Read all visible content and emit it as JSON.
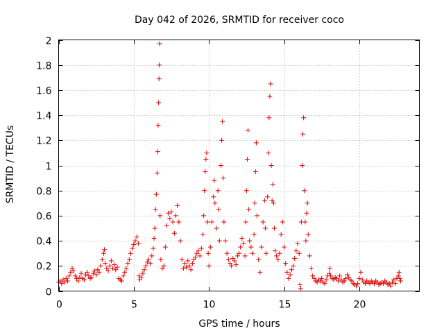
{
  "chart_data": {
    "type": "scatter",
    "title": "Day 042 of 2026, SRMTID for receiver coco",
    "xlabel": "GPS time / hours",
    "ylabel": "SRMTID / TECUs",
    "xlim": [
      0,
      24
    ],
    "ylim": [
      0,
      2
    ],
    "xticks": [
      0,
      5,
      10,
      15,
      20
    ],
    "yticks": [
      0,
      0.2,
      0.4,
      0.6,
      0.8,
      1,
      1.2,
      1.4,
      1.6,
      1.8,
      2
    ],
    "xtick_labels": [
      "0",
      "5",
      "10",
      "15",
      "20"
    ],
    "ytick_labels": [
      "0",
      "0.2",
      "0.4",
      "0.6",
      "0.8",
      "1",
      "1.2",
      "1.4",
      "1.6",
      "1.8",
      "2"
    ],
    "grid": true,
    "marker": "plus",
    "color": "#e00000",
    "series": [
      {
        "name": "SRMTID",
        "points": [
          [
            0.0,
            0.07
          ],
          [
            0.1,
            0.08
          ],
          [
            0.2,
            0.06
          ],
          [
            0.3,
            0.09
          ],
          [
            0.4,
            0.07
          ],
          [
            0.5,
            0.1
          ],
          [
            0.6,
            0.08
          ],
          [
            0.7,
            0.12
          ],
          [
            0.8,
            0.15
          ],
          [
            0.9,
            0.18
          ],
          [
            1.0,
            0.16
          ],
          [
            1.1,
            0.12
          ],
          [
            1.2,
            0.1
          ],
          [
            1.3,
            0.08
          ],
          [
            1.4,
            0.11
          ],
          [
            1.5,
            0.14
          ],
          [
            1.6,
            0.1
          ],
          [
            1.7,
            0.09
          ],
          [
            1.8,
            0.13
          ],
          [
            1.9,
            0.15
          ],
          [
            2.0,
            0.12
          ],
          [
            2.1,
            0.1
          ],
          [
            2.2,
            0.11
          ],
          [
            2.3,
            0.14
          ],
          [
            2.4,
            0.16
          ],
          [
            2.5,
            0.13
          ],
          [
            2.6,
            0.17
          ],
          [
            2.7,
            0.15
          ],
          [
            2.8,
            0.2
          ],
          [
            2.9,
            0.25
          ],
          [
            3.0,
            0.3
          ],
          [
            3.05,
            0.33
          ],
          [
            3.1,
            0.22
          ],
          [
            3.2,
            0.18
          ],
          [
            3.3,
            0.16
          ],
          [
            3.4,
            0.2
          ],
          [
            3.5,
            0.24
          ],
          [
            3.6,
            0.18
          ],
          [
            3.7,
            0.21
          ],
          [
            3.8,
            0.17
          ],
          [
            3.9,
            0.19
          ],
          [
            4.0,
            0.1
          ],
          [
            4.1,
            0.09
          ],
          [
            4.2,
            0.08
          ],
          [
            4.3,
            0.12
          ],
          [
            4.4,
            0.15
          ],
          [
            4.5,
            0.18
          ],
          [
            4.6,
            0.22
          ],
          [
            4.7,
            0.25
          ],
          [
            4.8,
            0.3
          ],
          [
            4.9,
            0.34
          ],
          [
            5.0,
            0.37
          ],
          [
            5.1,
            0.4
          ],
          [
            5.2,
            0.43
          ],
          [
            5.3,
            0.38
          ],
          [
            5.35,
            0.12
          ],
          [
            5.4,
            0.09
          ],
          [
            5.5,
            0.11
          ],
          [
            5.6,
            0.14
          ],
          [
            5.7,
            0.17
          ],
          [
            5.8,
            0.2
          ],
          [
            5.9,
            0.23
          ],
          [
            6.0,
            0.25
          ],
          [
            6.1,
            0.22
          ],
          [
            6.2,
            0.28
          ],
          [
            6.3,
            0.34
          ],
          [
            6.35,
            0.42
          ],
          [
            6.4,
            0.5
          ],
          [
            6.45,
            0.65
          ],
          [
            6.5,
            0.77
          ],
          [
            6.55,
            0.94
          ],
          [
            6.6,
            1.11
          ],
          [
            6.62,
            1.32
          ],
          [
            6.65,
            1.5
          ],
          [
            6.68,
            1.69
          ],
          [
            6.7,
            1.8
          ],
          [
            6.72,
            1.97
          ],
          [
            6.75,
            0.6
          ],
          [
            6.8,
            0.25
          ],
          [
            6.9,
            0.18
          ],
          [
            7.0,
            0.2
          ],
          [
            7.1,
            0.35
          ],
          [
            7.2,
            0.52
          ],
          [
            7.3,
            0.62
          ],
          [
            7.4,
            0.58
          ],
          [
            7.5,
            0.63
          ],
          [
            7.6,
            0.55
          ],
          [
            7.7,
            0.46
          ],
          [
            7.8,
            0.6
          ],
          [
            7.9,
            0.68
          ],
          [
            8.0,
            0.55
          ],
          [
            8.1,
            0.4
          ],
          [
            8.2,
            0.25
          ],
          [
            8.3,
            0.18
          ],
          [
            8.4,
            0.22
          ],
          [
            8.5,
            0.19
          ],
          [
            8.6,
            0.24
          ],
          [
            8.7,
            0.2
          ],
          [
            8.8,
            0.17
          ],
          [
            8.9,
            0.22
          ],
          [
            9.0,
            0.25
          ],
          [
            9.1,
            0.27
          ],
          [
            9.2,
            0.3
          ],
          [
            9.3,
            0.32
          ],
          [
            9.4,
            0.28
          ],
          [
            9.5,
            0.34
          ],
          [
            9.6,
            0.45
          ],
          [
            9.65,
            0.6
          ],
          [
            9.7,
            0.8
          ],
          [
            9.75,
            0.95
          ],
          [
            9.8,
            1.05
          ],
          [
            9.85,
            1.1
          ],
          [
            9.9,
            0.55
          ],
          [
            9.95,
            0.3
          ],
          [
            10.0,
            0.2
          ],
          [
            10.1,
            0.35
          ],
          [
            10.2,
            0.55
          ],
          [
            10.3,
            0.75
          ],
          [
            10.35,
            0.88
          ],
          [
            10.4,
            0.7
          ],
          [
            10.5,
            0.5
          ],
          [
            10.6,
            0.8
          ],
          [
            10.65,
            0.65
          ],
          [
            10.7,
            0.4
          ],
          [
            10.8,
            1.0
          ],
          [
            10.85,
            1.2
          ],
          [
            10.9,
            1.35
          ],
          [
            10.95,
            0.9
          ],
          [
            11.0,
            0.55
          ],
          [
            11.1,
            0.4
          ],
          [
            11.2,
            0.3
          ],
          [
            11.3,
            0.25
          ],
          [
            11.4,
            0.22
          ],
          [
            11.5,
            0.2
          ],
          [
            11.6,
            0.26
          ],
          [
            11.7,
            0.24
          ],
          [
            11.8,
            0.21
          ],
          [
            11.9,
            0.28
          ],
          [
            12.0,
            0.3
          ],
          [
            12.1,
            0.35
          ],
          [
            12.2,
            0.42
          ],
          [
            12.3,
            0.38
          ],
          [
            12.4,
            0.28
          ],
          [
            12.45,
            0.55
          ],
          [
            12.5,
            0.8
          ],
          [
            12.55,
            1.05
          ],
          [
            12.6,
            1.28
          ],
          [
            12.65,
            0.65
          ],
          [
            12.7,
            0.4
          ],
          [
            12.8,
            0.35
          ],
          [
            12.9,
            0.3
          ],
          [
            13.0,
            0.45
          ],
          [
            13.05,
            0.7
          ],
          [
            13.1,
            0.95
          ],
          [
            13.15,
            1.18
          ],
          [
            13.2,
            0.6
          ],
          [
            13.3,
            0.25
          ],
          [
            13.4,
            0.15
          ],
          [
            13.5,
            0.35
          ],
          [
            13.6,
            0.55
          ],
          [
            13.7,
            0.72
          ],
          [
            13.75,
            0.5
          ],
          [
            13.8,
            0.3
          ],
          [
            13.9,
            0.75
          ],
          [
            13.95,
            1.1
          ],
          [
            14.0,
            1.38
          ],
          [
            14.05,
            1.55
          ],
          [
            14.1,
            1.65
          ],
          [
            14.15,
            1.0
          ],
          [
            14.2,
            0.72
          ],
          [
            14.25,
            0.85
          ],
          [
            14.3,
            0.7
          ],
          [
            14.35,
            0.5
          ],
          [
            14.4,
            0.32
          ],
          [
            14.5,
            0.28
          ],
          [
            14.6,
            0.25
          ],
          [
            14.7,
            0.3
          ],
          [
            14.8,
            0.45
          ],
          [
            14.9,
            0.55
          ],
          [
            15.0,
            0.35
          ],
          [
            15.1,
            0.22
          ],
          [
            15.2,
            0.15
          ],
          [
            15.3,
            0.1
          ],
          [
            15.4,
            0.13
          ],
          [
            15.5,
            0.17
          ],
          [
            15.6,
            0.2
          ],
          [
            15.7,
            0.26
          ],
          [
            15.8,
            0.32
          ],
          [
            15.9,
            0.38
          ],
          [
            16.0,
            0.3
          ],
          [
            16.05,
            0.05
          ],
          [
            16.1,
            0.02
          ],
          [
            16.15,
            0.55
          ],
          [
            16.2,
            1.0
          ],
          [
            16.25,
            1.25
          ],
          [
            16.3,
            1.38
          ],
          [
            16.35,
            0.8
          ],
          [
            16.4,
            0.55
          ],
          [
            16.45,
            0.4
          ],
          [
            16.5,
            0.62
          ],
          [
            16.55,
            0.7
          ],
          [
            16.6,
            0.45
          ],
          [
            16.7,
            0.28
          ],
          [
            16.8,
            0.18
          ],
          [
            16.9,
            0.12
          ],
          [
            17.0,
            0.1
          ],
          [
            17.1,
            0.08
          ],
          [
            17.2,
            0.07
          ],
          [
            17.3,
            0.09
          ],
          [
            17.4,
            0.08
          ],
          [
            17.5,
            0.1
          ],
          [
            17.6,
            0.07
          ],
          [
            17.7,
            0.06
          ],
          [
            17.8,
            0.09
          ],
          [
            17.9,
            0.12
          ],
          [
            18.0,
            0.14
          ],
          [
            18.05,
            0.18
          ],
          [
            18.1,
            0.12
          ],
          [
            18.2,
            0.1
          ],
          [
            18.3,
            0.09
          ],
          [
            18.4,
            0.11
          ],
          [
            18.5,
            0.1
          ],
          [
            18.6,
            0.08
          ],
          [
            18.7,
            0.12
          ],
          [
            18.8,
            0.09
          ],
          [
            18.9,
            0.07
          ],
          [
            19.0,
            0.08
          ],
          [
            19.1,
            0.1
          ],
          [
            19.2,
            0.13
          ],
          [
            19.3,
            0.11
          ],
          [
            19.4,
            0.09
          ],
          [
            19.5,
            0.08
          ],
          [
            19.6,
            0.06
          ],
          [
            19.7,
            0.05
          ],
          [
            19.8,
            0.04
          ],
          [
            19.9,
            0.06
          ],
          [
            20.0,
            0.1
          ],
          [
            20.1,
            0.15
          ],
          [
            20.2,
            0.09
          ],
          [
            20.3,
            0.07
          ],
          [
            20.4,
            0.06
          ],
          [
            20.5,
            0.08
          ],
          [
            20.6,
            0.07
          ],
          [
            20.7,
            0.06
          ],
          [
            20.8,
            0.08
          ],
          [
            20.9,
            0.07
          ],
          [
            21.0,
            0.06
          ],
          [
            21.1,
            0.08
          ],
          [
            21.2,
            0.07
          ],
          [
            21.3,
            0.05
          ],
          [
            21.4,
            0.06
          ],
          [
            21.5,
            0.07
          ],
          [
            21.6,
            0.06
          ],
          [
            21.7,
            0.08
          ],
          [
            21.8,
            0.07
          ],
          [
            21.9,
            0.05
          ],
          [
            22.0,
            0.06
          ],
          [
            22.1,
            0.04
          ],
          [
            22.2,
            0.07
          ],
          [
            22.3,
            0.09
          ],
          [
            22.4,
            0.06
          ],
          [
            22.5,
            0.1
          ],
          [
            22.6,
            0.12
          ],
          [
            22.65,
            0.15
          ],
          [
            22.7,
            0.1
          ],
          [
            22.75,
            0.08
          ]
        ]
      }
    ]
  }
}
